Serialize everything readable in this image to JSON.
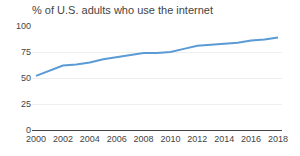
{
  "chart_data": {
    "type": "line",
    "title": "% of U.S. adults who use the internet",
    "x": [
      2000,
      2001,
      2002,
      2003,
      2004,
      2005,
      2006,
      2007,
      2008,
      2009,
      2010,
      2011,
      2012,
      2013,
      2014,
      2015,
      2016,
      2017,
      2018
    ],
    "values": [
      52,
      57,
      62,
      63,
      65,
      68,
      70,
      72,
      74,
      74,
      75,
      78,
      81,
      82,
      83,
      84,
      86,
      87,
      89
    ],
    "color": "#5b9bd5",
    "xlim": [
      1999.7,
      2018.3
    ],
    "xticks": [
      2000,
      2002,
      2004,
      2006,
      2008,
      2010,
      2012,
      2014,
      2016,
      2018
    ],
    "ylim": [
      0,
      100
    ],
    "yticks": [
      0,
      25,
      50,
      75,
      100
    ],
    "grid": true
  }
}
